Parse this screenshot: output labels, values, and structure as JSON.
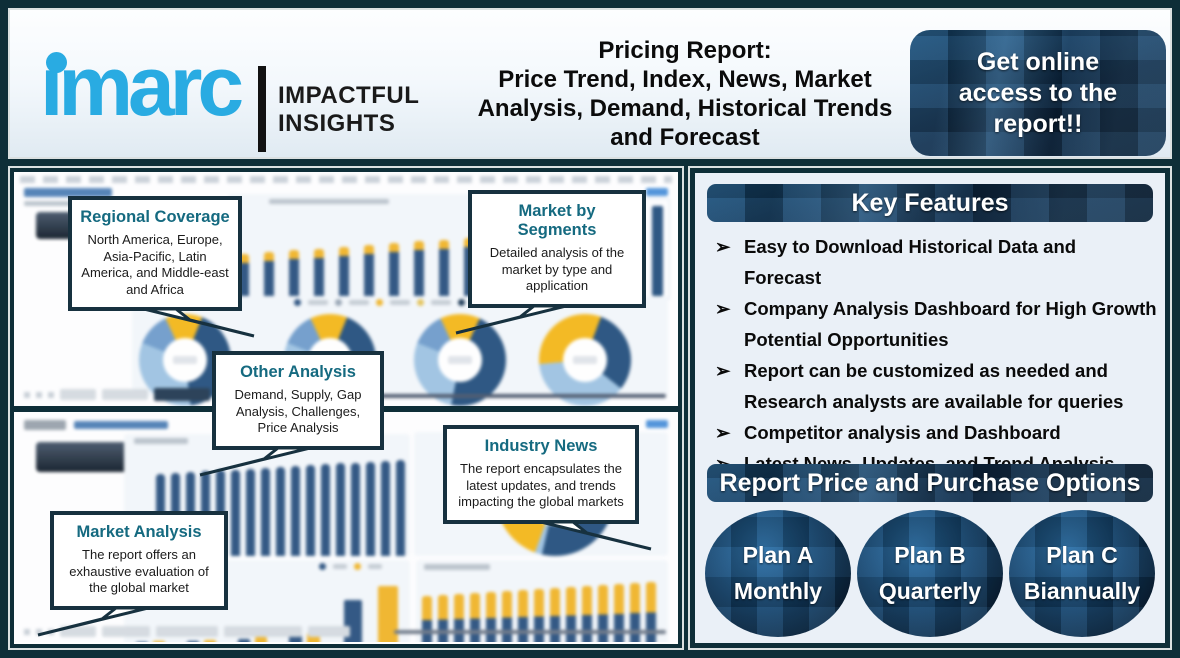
{
  "header": {
    "logo": {
      "brand": "imarc",
      "tagline_line1": "IMPACTFUL",
      "tagline_line2": "INSIGHTS"
    },
    "title_line1": "Pricing Report:",
    "title_rest": "Price Trend, Index, News, Market Analysis, Demand, Historical Trends and Forecast",
    "cta_label": "Get online access to the report!!"
  },
  "left_panel": {
    "callouts": [
      {
        "title": "Regional Coverage",
        "body": "North America, Europe, Asia-Pacific, Latin America, and Middle-east and Africa"
      },
      {
        "title": "Market by Segments",
        "body": "Detailed analysis of the market by type and application"
      },
      {
        "title": "Other Analysis",
        "body": "Demand, Supply, Gap Analysis, Challenges, Price Analysis"
      },
      {
        "title": "Industry News",
        "body": "The report encapsulates the latest updates, and trends impacting the global markets"
      },
      {
        "title": "Market Analysis",
        "body": "The report offers an exhaustive evaluation of the global market"
      }
    ]
  },
  "right_panel": {
    "key_features": {
      "heading": "Key Features",
      "bullet": "➢",
      "items": [
        "Easy to Download Historical Data and Forecast",
        "Company Analysis Dashboard for High Growth Potential Opportunities",
        "Report can be customized as needed and Research analysts are available for queries",
        "Competitor analysis and Dashboard",
        "Latest News, Updates, and Trend Analysis"
      ]
    },
    "purchase": {
      "heading": "Report Price and Purchase Options",
      "plans": [
        {
          "name": "Plan A",
          "billing": "Monthly"
        },
        {
          "name": "Plan B",
          "billing": "Quarterly"
        },
        {
          "name": "Plan C",
          "billing": "Biannually"
        }
      ]
    }
  },
  "colors": {
    "brand_blue": "#29abe2",
    "frame_dark_teal": "#0e2e38",
    "chart_navy": "#2a517f",
    "chart_yellow": "#f0b429",
    "chart_light_blue": "#9ec3e2",
    "callout_title_teal": "#156a80",
    "callout_border": "#17313f",
    "right_panel_bg": "#eaf0f7"
  }
}
